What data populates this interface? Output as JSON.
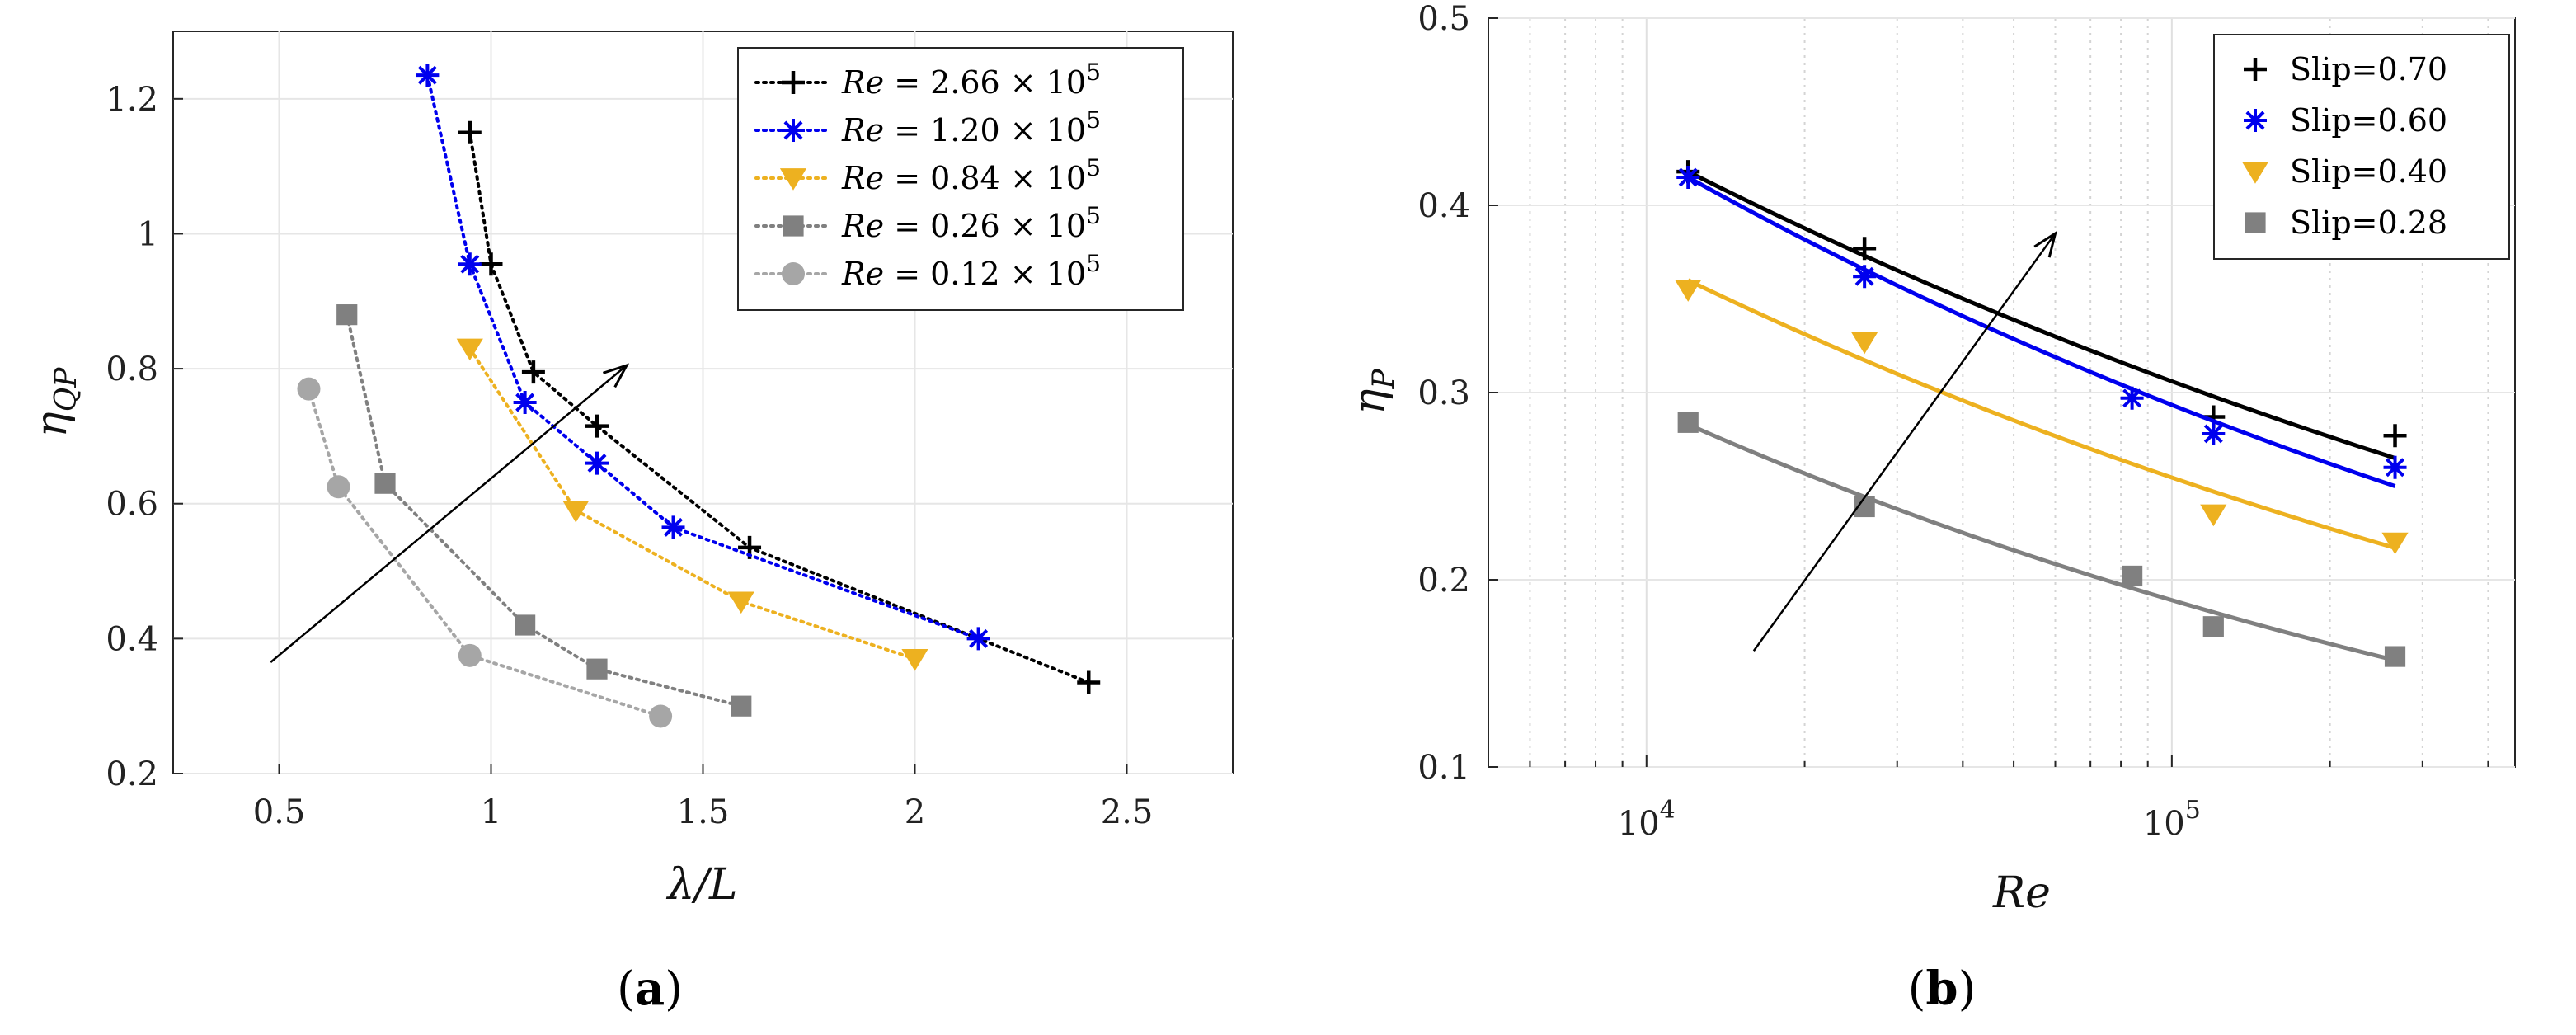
{
  "chart_data": [
    {
      "type": "line",
      "panel": "a",
      "caption_label": "a",
      "xlabel": "λ/L",
      "ylabel": "η",
      "ylabel_sub": "QP",
      "xlim": [
        0.25,
        2.75
      ],
      "ylim": [
        0.2,
        1.3
      ],
      "xticks": [
        0.5,
        1,
        1.5,
        2,
        2.5
      ],
      "xtick_labels": [
        "0.5",
        "1",
        "1.5",
        "2",
        "2.5"
      ],
      "yticks": [
        0.2,
        0.4,
        0.6,
        0.8,
        1.0,
        1.2
      ],
      "ytick_labels": [
        "0.2",
        "0.4",
        "0.6",
        "0.8",
        "1",
        "1.2"
      ],
      "grid": true,
      "legend_position": "top-right",
      "series": [
        {
          "name": "Re = 2.66 × 10^5",
          "legend_prefix": "Re",
          "legend_value": " = 2.66 × 10",
          "legend_exp": "5",
          "color": "#000000",
          "marker": "plus",
          "x": [
            0.95,
            1.0,
            1.1,
            1.25,
            1.61,
            2.41
          ],
          "y": [
            1.15,
            0.955,
            0.795,
            0.715,
            0.535,
            0.335
          ]
        },
        {
          "name": "Re = 1.20 × 10^5",
          "legend_prefix": "Re",
          "legend_value": " = 1.20 × 10",
          "legend_exp": "5",
          "color": "#0000ee",
          "marker": "asterisk",
          "x": [
            0.85,
            0.95,
            1.08,
            1.25,
            1.43,
            2.15
          ],
          "y": [
            1.235,
            0.955,
            0.75,
            0.66,
            0.565,
            0.4
          ]
        },
        {
          "name": "Re = 0.84 × 10^5",
          "legend_prefix": "Re",
          "legend_value": " = 0.84 × 10",
          "legend_exp": "5",
          "color": "#edb120",
          "marker": "triangle-down",
          "x": [
            0.95,
            1.2,
            1.59,
            2.0
          ],
          "y": [
            0.83,
            0.59,
            0.455,
            0.37
          ]
        },
        {
          "name": "Re = 0.26 × 10^5",
          "legend_prefix": "Re",
          "legend_value": " = 0.26 × 10",
          "legend_exp": "5",
          "color": "#808080",
          "marker": "square",
          "x": [
            0.66,
            0.75,
            1.08,
            1.25,
            1.59
          ],
          "y": [
            0.88,
            0.63,
            0.42,
            0.355,
            0.3
          ]
        },
        {
          "name": "Re = 0.12 × 10^5",
          "legend_prefix": "Re",
          "legend_value": " = 0.12 × 10",
          "legend_exp": "5",
          "color": "#a6a6a6",
          "marker": "circle",
          "x": [
            0.57,
            0.64,
            0.95,
            1.4
          ],
          "y": [
            0.77,
            0.625,
            0.375,
            0.285
          ]
        }
      ],
      "annotations": [
        {
          "type": "arrow",
          "from": [
            0.48,
            0.365
          ],
          "to": [
            1.32,
            0.805
          ]
        }
      ]
    },
    {
      "type": "scatter",
      "panel": "b",
      "caption_label": "b",
      "xlabel": "Re",
      "ylabel": "η",
      "ylabel_sub": "P",
      "xscale": "log",
      "xlim": [
        5000,
        450000
      ],
      "ylim": [
        0.1,
        0.5
      ],
      "xticks": [
        10000,
        100000
      ],
      "xtick_base": "10",
      "xtick_exps": [
        "4",
        "5"
      ],
      "yticks": [
        0.1,
        0.2,
        0.3,
        0.4,
        0.5
      ],
      "ytick_labels": [
        "0.1",
        "0.2",
        "0.3",
        "0.4",
        "0.5"
      ],
      "grid": true,
      "legend_position": "top-right",
      "series": [
        {
          "name": "Slip=0.70",
          "color": "#000000",
          "marker": "plus",
          "x": [
            12000,
            26000,
            120000,
            266000
          ],
          "y": [
            0.418,
            0.377,
            0.287,
            0.277
          ],
          "fit_x": [
            12000,
            266000
          ],
          "fit_y": [
            0.418,
            0.265
          ]
        },
        {
          "name": "Slip=0.60",
          "color": "#0000ee",
          "marker": "asterisk",
          "x": [
            12000,
            26000,
            84000,
            120000,
            266000
          ],
          "y": [
            0.415,
            0.362,
            0.297,
            0.278,
            0.26
          ],
          "fit_x": [
            12000,
            266000
          ],
          "fit_y": [
            0.415,
            0.25
          ]
        },
        {
          "name": "Slip=0.40",
          "color": "#edb120",
          "marker": "triangle-down",
          "x": [
            12000,
            26000,
            120000,
            266000
          ],
          "y": [
            0.355,
            0.327,
            0.235,
            0.22
          ],
          "fit_x": [
            12000,
            266000
          ],
          "fit_y": [
            0.36,
            0.217
          ]
        },
        {
          "name": "Slip=0.28",
          "color": "#808080",
          "marker": "square",
          "x": [
            12000,
            26000,
            84000,
            120000,
            266000
          ],
          "y": [
            0.284,
            0.239,
            0.202,
            0.175,
            0.159
          ],
          "fit_x": [
            12000,
            266000
          ],
          "fit_y": [
            0.283,
            0.157
          ]
        }
      ],
      "annotations": [
        {
          "type": "arrow",
          "from": [
            16000,
            0.162
          ],
          "to": [
            60000,
            0.385
          ]
        }
      ]
    }
  ]
}
